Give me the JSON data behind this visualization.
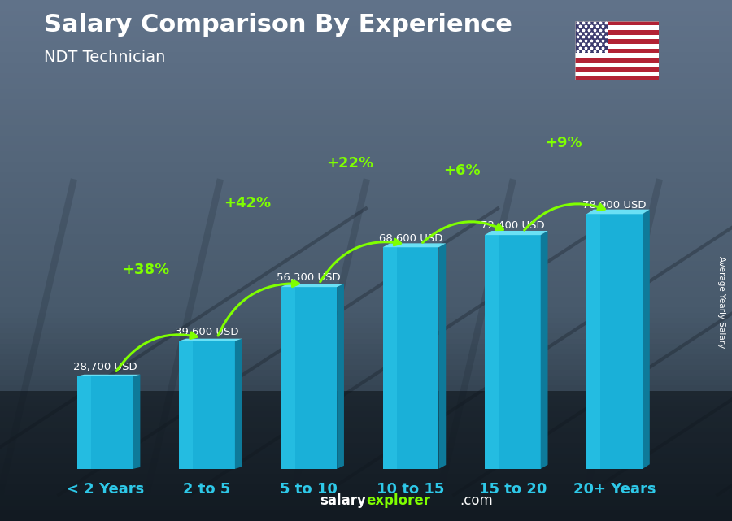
{
  "title": "Salary Comparison By Experience",
  "subtitle": "NDT Technician",
  "categories": [
    "< 2 Years",
    "2 to 5",
    "5 to 10",
    "10 to 15",
    "15 to 20",
    "20+ Years"
  ],
  "values": [
    28700,
    39600,
    56300,
    68600,
    72400,
    78900
  ],
  "labels": [
    "28,700 USD",
    "39,600 USD",
    "56,300 USD",
    "68,600 USD",
    "72,400 USD",
    "78,900 USD"
  ],
  "pct_changes": [
    "+38%",
    "+42%",
    "+22%",
    "+6%",
    "+9%"
  ],
  "bar_color_main": "#1ab0d8",
  "bar_color_light": "#35d0f0",
  "bar_color_dark": "#0e7a9a",
  "bar_color_top": "#6ae0f5",
  "title_color": "#ffffff",
  "subtitle_color": "#ffffff",
  "label_color": "#ffffff",
  "pct_color": "#7fff00",
  "xlabel_color": "#2ec8e8",
  "bg_top": "#3a4a5a",
  "bg_bottom": "#1a2530",
  "footer_salary_color": "#ffffff",
  "footer_explorer_color": "#7fff00",
  "footer_com_color": "#ffffff",
  "ylabel_text": "Average Yearly Salary",
  "ylim": [
    0,
    100000
  ],
  "bar_width": 0.55
}
